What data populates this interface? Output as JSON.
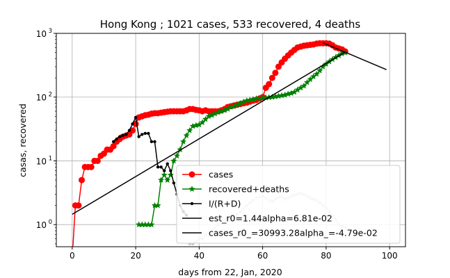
{
  "chart_data": {
    "type": "line",
    "title": "Hong Kong ; 1021 cases, 533 recovered, 4 deaths",
    "xlabel": "days from 22, Jan, 2020",
    "ylabel": "casas, recovered",
    "xlim": [
      -5,
      105
    ],
    "ylim": [
      0.45,
      1000
    ],
    "yscale": "log",
    "grid": true,
    "legend_position": "lower-right",
    "x_ticks": [
      0,
      20,
      40,
      60,
      80,
      100
    ],
    "x_tick_labels": [
      "0",
      "20",
      "40",
      "60",
      "80",
      "100"
    ],
    "y_ticks": [
      1,
      10,
      100,
      1000
    ],
    "y_tick_labels": [
      "10^0",
      "10^1",
      "10^2",
      "10^3"
    ],
    "series": [
      {
        "name": "cases",
        "color": "#ff0000",
        "marker": "circle",
        "x": [
          0,
          1,
          2,
          3,
          4,
          5,
          6,
          7,
          8,
          9,
          10,
          11,
          12,
          13,
          14,
          15,
          16,
          17,
          18,
          19,
          20,
          21,
          22,
          23,
          24,
          25,
          26,
          27,
          28,
          29,
          30,
          31,
          32,
          33,
          34,
          35,
          36,
          37,
          38,
          39,
          40,
          41,
          42,
          43,
          44,
          45,
          46,
          47,
          48,
          49,
          50,
          51,
          52,
          53,
          54,
          55,
          56,
          57,
          58,
          59,
          60,
          61,
          62,
          63,
          64,
          65,
          66,
          67,
          68,
          69,
          70,
          71,
          72,
          73,
          74,
          75,
          76,
          77,
          78,
          79,
          80,
          81,
          82,
          83,
          84,
          85,
          86
        ],
        "values": [
          0.3,
          2,
          2,
          5,
          8,
          8,
          8,
          10,
          10,
          12,
          13,
          15,
          15,
          17,
          20,
          22,
          24,
          25,
          26,
          30,
          38,
          48,
          50,
          52,
          53,
          55,
          56,
          56,
          57,
          58,
          59,
          60,
          60,
          60,
          60,
          60,
          62,
          65,
          65,
          63,
          62,
          60,
          62,
          60,
          60,
          60,
          60,
          62,
          65,
          70,
          72,
          74,
          76,
          78,
          80,
          82,
          85,
          88,
          90,
          95,
          100,
          140,
          160,
          200,
          240,
          300,
          350,
          400,
          450,
          500,
          550,
          600,
          620,
          640,
          650,
          660,
          670,
          690,
          700,
          700,
          700,
          690,
          650,
          600,
          580,
          560,
          520
        ]
      },
      {
        "name": "recovered+deaths",
        "color": "#008000",
        "marker": "star",
        "x": [
          21,
          22,
          23,
          24,
          25,
          26,
          27,
          28,
          29,
          30,
          31,
          32,
          33,
          34,
          35,
          36,
          37,
          38,
          39,
          40,
          41,
          42,
          43,
          44,
          45,
          46,
          47,
          48,
          49,
          50,
          51,
          52,
          53,
          54,
          55,
          56,
          57,
          58,
          59,
          60,
          61,
          62,
          63,
          64,
          65,
          66,
          67,
          68,
          69,
          70,
          71,
          72,
          73,
          74,
          75,
          76,
          77,
          78,
          79,
          80,
          81,
          82,
          83,
          84,
          85,
          86
        ],
        "values": [
          1,
          1,
          1,
          1,
          1,
          2,
          2,
          5,
          6,
          5,
          6,
          10,
          12,
          15,
          20,
          25,
          30,
          35,
          36,
          37,
          40,
          45,
          50,
          52,
          55,
          58,
          60,
          62,
          65,
          70,
          72,
          76,
          80,
          84,
          88,
          90,
          92,
          95,
          96,
          97,
          98,
          99,
          100,
          102,
          104,
          106,
          108,
          112,
          115,
          120,
          130,
          140,
          150,
          170,
          190,
          210,
          230,
          260,
          300,
          330,
          360,
          390,
          420,
          450,
          480,
          500
        ]
      },
      {
        "name": "I/(R+D)",
        "color": "#000000",
        "marker": "dot",
        "x": [
          13,
          14,
          15,
          16,
          17,
          18,
          19,
          20,
          21,
          22,
          23,
          24,
          25,
          26,
          27,
          28,
          29,
          30,
          31,
          32,
          33,
          34,
          35,
          36
        ],
        "values": [
          20,
          22,
          24,
          25,
          26,
          30,
          38,
          48,
          24,
          26,
          27,
          27,
          20,
          20,
          8,
          8,
          7,
          9,
          7,
          4.5,
          3,
          2,
          1.6,
          1.4
        ]
      },
      {
        "name": "est_r0=1.44alpha=6.81e-02",
        "color": "#000000",
        "marker": "none",
        "x": [
          0,
          86
        ],
        "values": [
          1.45,
          510
        ]
      },
      {
        "name": "cases_r0_=30993.28alpha_=-4.79e-02",
        "color": "#000000",
        "marker": "none",
        "x": [
          79,
          99
        ],
        "values": [
          710,
          270
        ]
      }
    ],
    "background_series": {
      "color": "#c8c8c8",
      "marker": "dot",
      "x": [
        37,
        38,
        39,
        40,
        41,
        42,
        43,
        44,
        45,
        46,
        47,
        48,
        49,
        50,
        51,
        52,
        53,
        54,
        55,
        56,
        57,
        58,
        59,
        60,
        61,
        62,
        63,
        64,
        65,
        66,
        67,
        68,
        69,
        70,
        71,
        72,
        73,
        74,
        75,
        76,
        77,
        78,
        79,
        80,
        81,
        82,
        83,
        84,
        85,
        86
      ],
      "values": [
        0.5,
        0.5,
        0.55,
        0.6,
        0.6,
        0.7,
        0.75,
        0.8,
        0.9,
        1.0,
        1.1,
        1.2,
        1.25,
        1.25,
        1.3,
        1.45,
        1.6,
        1.8,
        2.0,
        2.2,
        2.4,
        2.6,
        2.7,
        2.8,
        2.6,
        2.4,
        2.3,
        2.5,
        2.7,
        2.7,
        2.5,
        2.6,
        2.8,
        2.9,
        3.0,
        3.1,
        3.0,
        2.8,
        2.6,
        2.5,
        2.4,
        2.2,
        2.0,
        1.8,
        1.6,
        1.4,
        1.2,
        1.0,
        0.95,
        0.9
      ]
    }
  }
}
